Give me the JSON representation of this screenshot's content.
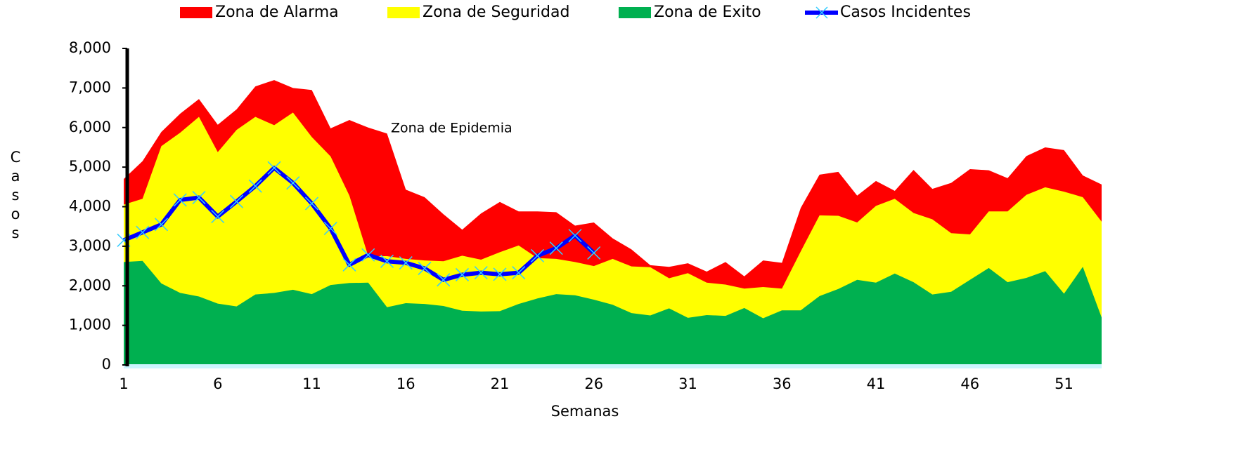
{
  "chart_data": {
    "type": "area",
    "annotation": "Zona de Epidemia",
    "x_label": "Semanas",
    "y_label": "Casos",
    "categories": [
      "1",
      null,
      null,
      null,
      null,
      "6",
      null,
      null,
      null,
      null,
      "11",
      null,
      null,
      null,
      null,
      "16",
      null,
      null,
      null,
      null,
      "21",
      null,
      null,
      null,
      null,
      "26",
      null,
      null,
      null,
      null,
      "31",
      null,
      null,
      null,
      null,
      "36",
      null,
      null,
      null,
      null,
      "41",
      null,
      null,
      null,
      null,
      "46",
      null,
      null,
      null,
      null,
      "51",
      null,
      null
    ],
    "series": [
      {
        "name": "Zona de Alarma",
        "color": "#ff0000",
        "values": [
          4700,
          5150,
          5890,
          6350,
          6720,
          6070,
          6460,
          7040,
          7200,
          7000,
          6950,
          5980,
          6190,
          6000,
          5850,
          4430,
          4240,
          3810,
          3420,
          3830,
          4120,
          3880,
          3880,
          3860,
          3520,
          3600,
          3200,
          2920,
          2520,
          2480,
          2570,
          2360,
          2600,
          2240,
          2640,
          2580,
          3970,
          4810,
          4880,
          4280,
          4650,
          4400,
          4930,
          4450,
          4600,
          4950,
          4920,
          4720,
          5280,
          5500,
          5430,
          4790,
          4560
        ]
      },
      {
        "name": "Zona de Seguridad",
        "color": "#ffff00",
        "values": [
          4050,
          4200,
          5530,
          5870,
          6270,
          5380,
          5940,
          6270,
          6060,
          6380,
          5760,
          5270,
          4280,
          2750,
          2750,
          2680,
          2640,
          2620,
          2760,
          2660,
          2850,
          3020,
          2700,
          2680,
          2600,
          2500,
          2680,
          2490,
          2470,
          2190,
          2320,
          2080,
          2030,
          1930,
          1970,
          1930,
          2870,
          3780,
          3770,
          3600,
          4020,
          4200,
          3840,
          3680,
          3330,
          3300,
          3880,
          3880,
          4300,
          4490,
          4380,
          4240,
          3620
        ]
      },
      {
        "name": "Zona de Exito",
        "color": "#00b050",
        "values": [
          2600,
          2630,
          2060,
          1820,
          1730,
          1550,
          1480,
          1780,
          1820,
          1900,
          1790,
          2020,
          2070,
          2080,
          1460,
          1560,
          1540,
          1490,
          1370,
          1350,
          1360,
          1540,
          1680,
          1790,
          1760,
          1650,
          1520,
          1310,
          1250,
          1430,
          1190,
          1260,
          1240,
          1440,
          1180,
          1380,
          1380,
          1740,
          1920,
          2150,
          2080,
          2310,
          2090,
          1780,
          1850,
          2150,
          2450,
          2090,
          2200,
          2370,
          1800,
          2480,
          1200
        ]
      },
      {
        "name": "Casos Incidentes",
        "type": "line",
        "color": "#0000ff",
        "marker_color": "#33ccff",
        "values": [
          3150,
          3350,
          3550,
          4170,
          4230,
          3750,
          4130,
          4520,
          4980,
          4600,
          4080,
          3450,
          2530,
          2780,
          2620,
          2580,
          2440,
          2150,
          2280,
          2330,
          2290,
          2330,
          2760,
          2950,
          3270,
          2830,
          null,
          null,
          null,
          null,
          null,
          null,
          null,
          null,
          null,
          null,
          null,
          null,
          null,
          null,
          null,
          null,
          null,
          null,
          null,
          null,
          null,
          null,
          null,
          null,
          null,
          null,
          null
        ]
      }
    ],
    "ylim": [
      0,
      8000
    ],
    "yticks": [
      0,
      {
        "value": 1000,
        "label": "1,000"
      },
      {
        "value": 2000,
        "label": "2,000"
      },
      {
        "value": 3000,
        "label": "3,000"
      },
      {
        "value": 4000,
        "label": "4,000"
      },
      {
        "value": 5000,
        "label": "5,000"
      },
      {
        "value": 6000,
        "label": "6,000"
      },
      {
        "value": 7000,
        "label": "7,000"
      },
      {
        "value": 8000,
        "label": "8,000"
      }
    ],
    "legend": "top"
  }
}
